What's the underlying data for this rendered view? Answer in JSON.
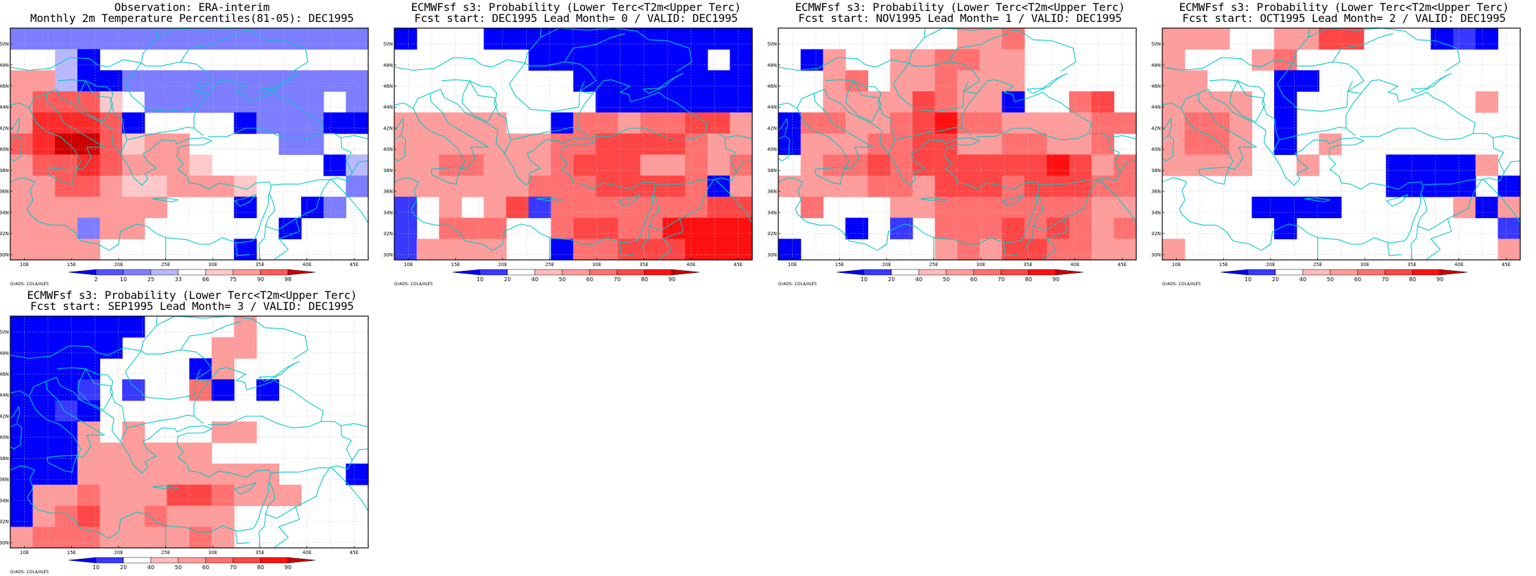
{
  "panels": [
    {
      "title_line1": "Observation: ERA-interim",
      "title_line2": "Monthly 2m Temperature Percentiles(81-05): DEC1995",
      "colorbar_labels": [
        "2",
        "10",
        "25",
        "33",
        "66",
        "75",
        "90",
        "98"
      ],
      "grid": [
        "2222222222222222",
        "0031000000000000",
        "5531122222222222",
        "5666402222222202",
        "5777610000122211",
        "6788645500002200",
        "5667655540000013",
        "5566544555400002",
        "5555555000100120",
        "5552550000001000",
        "5555000000100000"
      ]
    },
    {
      "title_line1": "ECMWFsf s3: Probability (Lower Terc<T2m<Upper Terc)",
      "title_line2": "Fcst start: DEC1995  Lead Month= 0 / VALID: DEC1995",
      "colorbar_labels": [
        "10",
        "20",
        "40",
        "50",
        "60",
        "70",
        "80",
        "90"
      ],
      "grid": [
        "1000111111111111",
        "0000001111111101",
        "0000000011111111",
        "0000000001111111",
        "4444400155455664",
        "4444444556666544",
        "4455444566644545",
        "4444445556666514",
        "2040462555555566",
        "2055500566557777",
        "2444400155666777"
      ]
    },
    {
      "title_line1": "ECMWFsf s3: Probability (Lower Terc<T2m<Upper Terc)",
      "title_line2": "Fcst start: NOV1995  Lead Month= 1 / VALID: DEC1995",
      "colorbar_labels": [
        "10",
        "20",
        "40",
        "50",
        "60",
        "70",
        "80",
        "90"
      ],
      "grid": [
        "0000000044500000",
        "0140044554400000",
        "0045044544400000",
        "0044446544100560",
        "1554456755444455",
        "1444556644554450",
        "0455656666667645",
        "4444554666566655",
        "0500044555555544",
        "0001020555656545",
        "1000000454665544"
      ]
    },
    {
      "title_line1": "ECMWFsf s3: Probability (Lower Terc<T2m<Upper Terc)",
      "title_line2": "Fcst start: OCT1995  Lead Month= 2 / VALID: DEC1995",
      "colorbar_labels": [
        "10",
        "20",
        "40",
        "50",
        "60",
        "70",
        "80",
        "90"
      ],
      "grid": [
        "4440044660001210",
        "4000450000000000",
        "4400011000000000",
        "4444010000000040",
        "4554010000000000",
        "4554010400000000",
        "4444004000111140",
        "0000000000111101",
        "0000111100000414",
        "0000010000000002",
        "4000000000000004"
      ]
    },
    {
      "title_line1": "ECMWFsf s3: Probability (Lower Terc<T2m<Upper Terc)",
      "title_line2": "Fcst start: SEP1995  Lead Month= 3 / VALID: DEC1995",
      "colorbar_labels": [
        "10",
        "20",
        "40",
        "50",
        "60",
        "70",
        "80",
        "90"
      ],
      "grid": [
        "1111110000400000",
        "1111100004400000",
        "1111000014000000",
        "1112020051010000",
        "1121000000000000",
        "1114040004400000",
        "1114444440000000",
        "1114444444440001",
        "1445444665444000",
        "1456445444000000",
        "4555444454000000"
      ]
    }
  ],
  "lat_labels": [
    "50N",
    "48N",
    "46N",
    "44N",
    "42N",
    "40N",
    "38N",
    "36N",
    "34N",
    "32N",
    "30N"
  ],
  "lon_labels": [
    "10E",
    "15E",
    "20E",
    "25E",
    "30E",
    "35E",
    "40E",
    "45E"
  ],
  "credit": "GrADS: COLA/IGES",
  "colors": {
    "obs_palette": [
      "#ffffff",
      "#0000ff",
      "#7d7dff",
      "#b9b9ff",
      "#ffc9c9",
      "#ff9a9a",
      "#ff5b5b",
      "#ff2a2a",
      "#cd0000"
    ],
    "prob_palette": [
      "#ffffff",
      "#0000ff",
      "#3838ff",
      "#ffbcbc",
      "#ff9c9c",
      "#ff7171",
      "#ff4646",
      "#ff1010",
      "#cd0000"
    ],
    "prob_colorbar": [
      "#0000ff",
      "#3838ff",
      "#ffffff",
      "#ffbcbc",
      "#ff9c9c",
      "#ff7171",
      "#ff4646",
      "#ff1010",
      "#cd0000"
    ],
    "obs_colorbar": [
      "#0000ff",
      "#5353ff",
      "#7d7dff",
      "#b9b9ff",
      "#ffffff",
      "#ffc9c9",
      "#ff9a9a",
      "#ff5b5b",
      "#cd0000"
    ],
    "coast": "#00c8c8",
    "grid_line": "#bbbbbb"
  }
}
